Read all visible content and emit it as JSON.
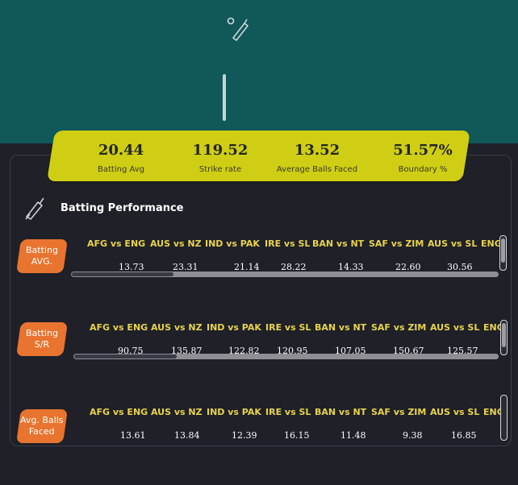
{
  "header": {
    "logo_icon": "cricket-bat-icon"
  },
  "summary": [
    {
      "value": "20.44",
      "label": "Batting Avg"
    },
    {
      "value": "119.52",
      "label": "Strike rate"
    },
    {
      "value": "13.52",
      "label": "Average Balls Faced"
    },
    {
      "value": "51.57%",
      "label": "Boundary %"
    }
  ],
  "section": {
    "title": "Batting Performance",
    "icon": "cricket-bat-icon"
  },
  "matches": [
    "AFG vs ENG",
    "AUS vs NZ",
    "IND vs PAK",
    "IRE vs SL",
    "BAN vs NT",
    "SAF vs ZIM",
    "AUS vs SL",
    "ENG"
  ],
  "rows": [
    {
      "label": "Batting\nAVG.",
      "values": [
        "13.73",
        "23.31",
        "21.14",
        "28.22",
        "14.33",
        "22.60",
        "30.56",
        ""
      ]
    },
    {
      "label": "Batting\nS/R",
      "values": [
        "90.75",
        "135.87",
        "122.82",
        "120.95",
        "107.05",
        "150.67",
        "125.57",
        ""
      ]
    },
    {
      "label": "Avg. Balls\nFaced",
      "values": [
        "13.61",
        "13.84",
        "12.39",
        "16.15",
        "11.48",
        "9.38",
        "16.85",
        ""
      ]
    }
  ],
  "colors": {
    "header_bg": "#10585a",
    "accent_yellow": "#cfce14",
    "badge_orange": "#e8742f",
    "match_label": "#e8d44c"
  }
}
